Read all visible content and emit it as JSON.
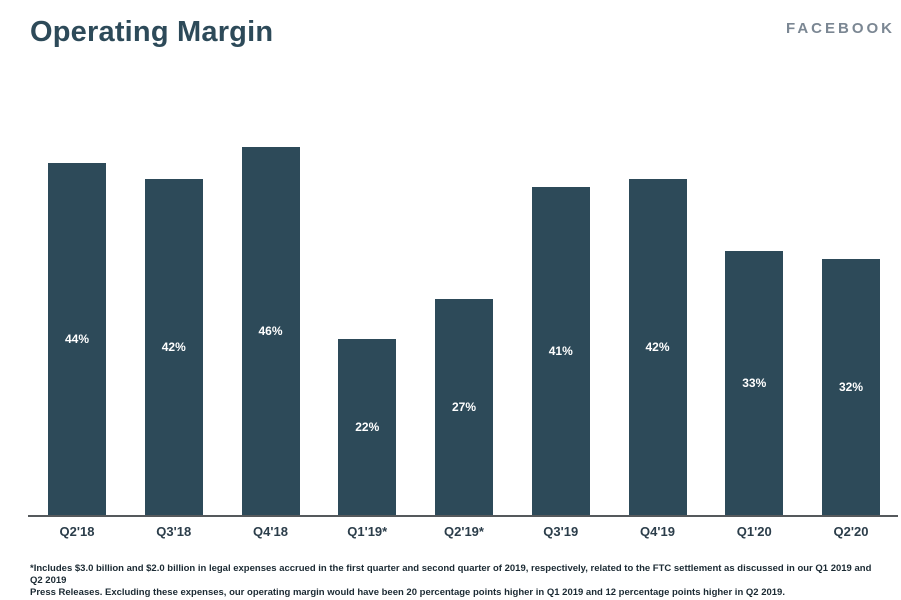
{
  "header": {
    "title": "Operating Margin",
    "brand": "FACEBOOK"
  },
  "chart_data": {
    "type": "bar",
    "title": "Operating Margin",
    "categories": [
      "Q2'18",
      "Q3'18",
      "Q4'18",
      "Q1'19*",
      "Q2'19*",
      "Q3'19",
      "Q4'19",
      "Q1'20",
      "Q2'20"
    ],
    "values": [
      44,
      42,
      46,
      22,
      27,
      41,
      42,
      33,
      32
    ],
    "value_labels": [
      "44%",
      "42%",
      "46%",
      "22%",
      "27%",
      "41%",
      "42%",
      "33%",
      "32%"
    ],
    "xlabel": "",
    "ylabel": "",
    "ylim": [
      0,
      52
    ],
    "grid": false,
    "legend_position": "none",
    "bar_color": "#2d4a59",
    "value_label_color": "#ffffff",
    "axis_line_color": "#55595c"
  },
  "footnote": {
    "lines": [
      "*Includes $3.0 billion and $2.0 billion in legal expenses accrued in the first quarter and second quarter of 2019, respectively, related to the FTC settlement as discussed in our Q1 2019 and Q2 2019",
      "Press Releases. Excluding these expenses, our operating margin would have been 20 percentage points higher in Q1 2019 and 12 percentage points higher in Q2 2019."
    ]
  }
}
